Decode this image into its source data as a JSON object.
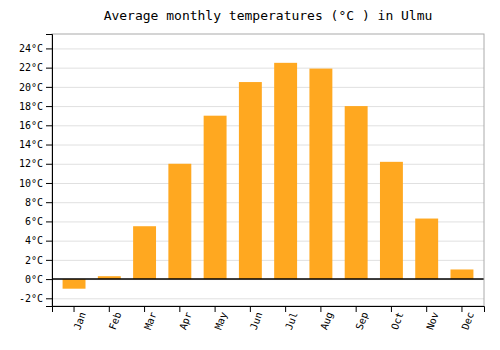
{
  "chart_data": {
    "type": "bar",
    "title": "Average monthly temperatures (°C ) in Ulmu",
    "categories": [
      "Jan",
      "Feb",
      "Mar",
      "Apr",
      "May",
      "Jun",
      "Jul",
      "Aug",
      "Sep",
      "Oct",
      "Nov",
      "Dec"
    ],
    "values": [
      -1.0,
      0.3,
      5.5,
      12.0,
      17.0,
      20.5,
      22.5,
      21.9,
      18.0,
      12.2,
      6.3,
      1.0
    ],
    "color": "#FFA820",
    "ylim": [
      -2.8,
      25.5
    ],
    "yticks": [
      {
        "value": -2,
        "label": "-2°C"
      },
      {
        "value": 0,
        "label": "0°C"
      },
      {
        "value": 2,
        "label": "2°C"
      },
      {
        "value": 4,
        "label": "4°C"
      },
      {
        "value": 6,
        "label": "6°C"
      },
      {
        "value": 8,
        "label": "8°C"
      },
      {
        "value": 10,
        "label": "10°C"
      },
      {
        "value": 12,
        "label": "12°C"
      },
      {
        "value": 14,
        "label": "14°C"
      },
      {
        "value": 16,
        "label": "16°C"
      },
      {
        "value": 18,
        "label": "18°C"
      },
      {
        "value": 20,
        "label": "20°C"
      },
      {
        "value": 22,
        "label": "22°C"
      },
      {
        "value": 24,
        "label": "24°C"
      }
    ],
    "grid": true
  }
}
